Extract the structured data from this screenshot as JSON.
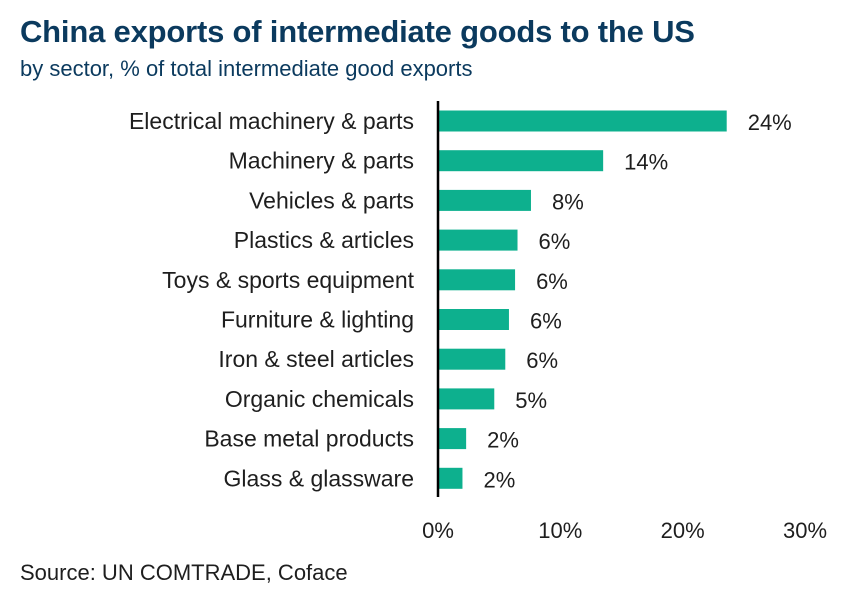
{
  "title": "China exports of intermediate goods to the US",
  "subtitle": "by sector, % of total intermediate good exports",
  "source": "Source: UN COMTRADE, Coface",
  "colors": {
    "bar": "#0db08e",
    "axis": "#000000",
    "title": "#0b3a5e"
  },
  "chart_data": {
    "type": "bar",
    "orientation": "horizontal",
    "categories": [
      "Electrical machinery & parts",
      "Machinery & parts",
      "Vehicles & parts",
      "Plastics & articles",
      "Toys & sports equipment",
      "Furniture & lighting",
      "Iron & steel articles",
      "Organic chemicals",
      "Base metal products",
      "Glass & glassware"
    ],
    "values": [
      23.6,
      13.5,
      7.6,
      6.5,
      6.3,
      5.8,
      5.5,
      4.6,
      2.3,
      2.0
    ],
    "data_labels": [
      "24%",
      "14%",
      "8%",
      "6%",
      "6%",
      "6%",
      "6%",
      "5%",
      "2%",
      "2%"
    ],
    "xlim": [
      0,
      30
    ],
    "xticks": [
      0,
      10,
      20,
      30
    ],
    "xtick_labels": [
      "0%",
      "10%",
      "20%",
      "30%"
    ],
    "grid": false,
    "legend": "none"
  }
}
